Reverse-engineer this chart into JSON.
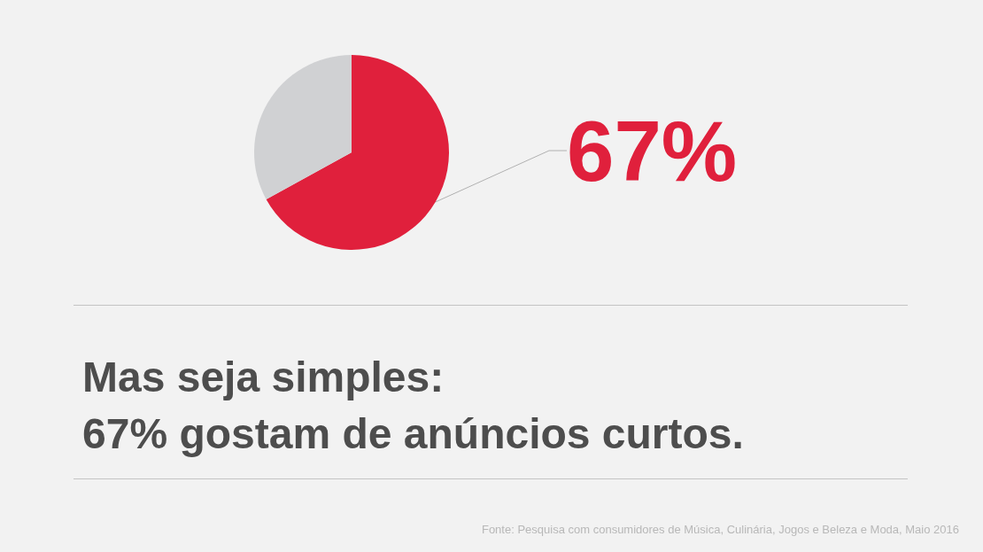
{
  "chart_data": {
    "type": "pie",
    "title": "Mas seja simples:\n67% gostam de anúncios curtos.",
    "categories": [
      null,
      null
    ],
    "values": [
      67,
      33
    ],
    "colors": [
      "#e0203c",
      "#d0d1d3"
    ],
    "value_labels": [
      "67%",
      null
    ],
    "annotations": [
      "Fonte: Pesquisa com consumidores de Música, Culinária, Jogos e Beleza e Moda, Maio 2016"
    ]
  }
}
